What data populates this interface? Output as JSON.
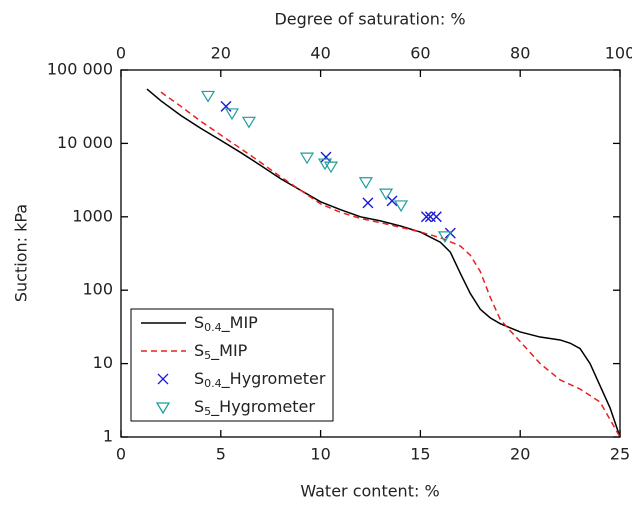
{
  "chart_data": {
    "type": "line",
    "xlabel": "Water content: %",
    "ylabel": "Suction: kPa",
    "x2label": "Degree of saturation: %",
    "xlim": [
      0,
      25
    ],
    "xticks": [
      0,
      5,
      10,
      15,
      20,
      25
    ],
    "x2lim": [
      0,
      100
    ],
    "x2ticks": [
      0,
      20,
      40,
      60,
      80,
      100
    ],
    "ylim": [
      1,
      100000
    ],
    "yscale": "log",
    "yticks": [
      1,
      10,
      100,
      1000,
      {
        "value": 10000,
        "label": "10 000"
      },
      {
        "value": 100000,
        "label": "100 000"
      }
    ],
    "legend": "lower left",
    "series": [
      {
        "name": "S0.4_MIP",
        "type": "line",
        "color": "#000000",
        "style": "solid",
        "x": [
          1.3,
          2,
          3,
          4,
          5,
          6,
          7,
          8,
          9,
          10,
          11,
          12,
          13,
          14,
          15,
          16,
          16.5,
          17,
          17.5,
          18,
          18.5,
          19,
          20,
          21,
          22,
          22.5,
          23,
          23.5,
          24,
          24.5,
          25
        ],
        "values": [
          55000,
          38000,
          24000,
          16000,
          11000,
          7500,
          5000,
          3300,
          2300,
          1600,
          1250,
          1000,
          880,
          750,
          620,
          450,
          330,
          170,
          90,
          55,
          42,
          35,
          27,
          23,
          21,
          19,
          16,
          10,
          5,
          2.5,
          1
        ]
      },
      {
        "name": "S5_MIP",
        "type": "line",
        "color": "#e8211f",
        "style": "dashed",
        "x": [
          2,
          3,
          4,
          5,
          6,
          7,
          8,
          9,
          10,
          11,
          12,
          13,
          14,
          15,
          16,
          17,
          17.5,
          18,
          18.5,
          19,
          19.5,
          20,
          21,
          22,
          23,
          24,
          25
        ],
        "values": [
          50000,
          32000,
          20000,
          13000,
          8500,
          5500,
          3500,
          2300,
          1500,
          1150,
          950,
          830,
          720,
          620,
          520,
          400,
          300,
          180,
          80,
          40,
          28,
          20,
          10,
          6,
          4.5,
          3,
          1
        ]
      },
      {
        "name": "S0.4_Hygrometer",
        "type": "scatter",
        "marker": "x",
        "color": "#1a1adb",
        "x": [
          5.26,
          10.27,
          12.37,
          13.58,
          15.3,
          15.5,
          15.8,
          16.5
        ],
        "values": [
          32000,
          6500,
          1550,
          1650,
          1000,
          1000,
          1000,
          600
        ]
      },
      {
        "name": "S5_Hygrometer",
        "type": "scatter",
        "marker": "triangle-down",
        "color": "#1f9e9a",
        "x": [
          4.36,
          5.56,
          6.41,
          9.32,
          10.22,
          10.52,
          12.27,
          13.28,
          14.03,
          16.23
        ],
        "values": [
          45000,
          26000,
          20000,
          6500,
          5400,
          4900,
          3000,
          2100,
          1450,
          550
        ]
      }
    ]
  }
}
